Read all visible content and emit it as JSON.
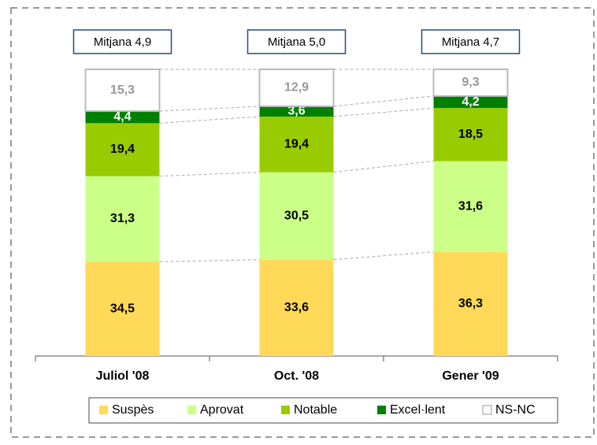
{
  "chart_data": {
    "type": "bar",
    "stacked": true,
    "percent_stacked": true,
    "categories": [
      "Juliol '08",
      "Oct. '08",
      "Gener '09"
    ],
    "annotations": [
      "Mitjana 4,9",
      "Mitjana 5,0",
      "Mitjana 4,7"
    ],
    "legend": "bottom",
    "series": [
      {
        "name": "Suspès",
        "color": "#ffd957",
        "values": [
          34.5,
          33.6,
          36.3
        ],
        "value_labels": [
          "34,5",
          "33,6",
          "36,3"
        ]
      },
      {
        "name": "Aprovat",
        "color": "#ccff88",
        "values": [
          31.3,
          30.5,
          31.6
        ],
        "value_labels": [
          "31,3",
          "30,5",
          "31,6"
        ]
      },
      {
        "name": "Notable",
        "color": "#99cc00",
        "values": [
          19.4,
          19.4,
          18.5
        ],
        "value_labels": [
          "19,4",
          "19,4",
          "18,5"
        ]
      },
      {
        "name": "Excel·lent",
        "color": "#008000",
        "values": [
          4.4,
          3.6,
          4.2
        ],
        "value_labels": [
          "4,4",
          "3,6",
          "4,2"
        ]
      },
      {
        "name": "NS-NC",
        "color": "#ffffff",
        "values": [
          15.3,
          12.9,
          9.3
        ],
        "value_labels": [
          "15,3",
          "12,9",
          "9,3"
        ]
      }
    ]
  }
}
